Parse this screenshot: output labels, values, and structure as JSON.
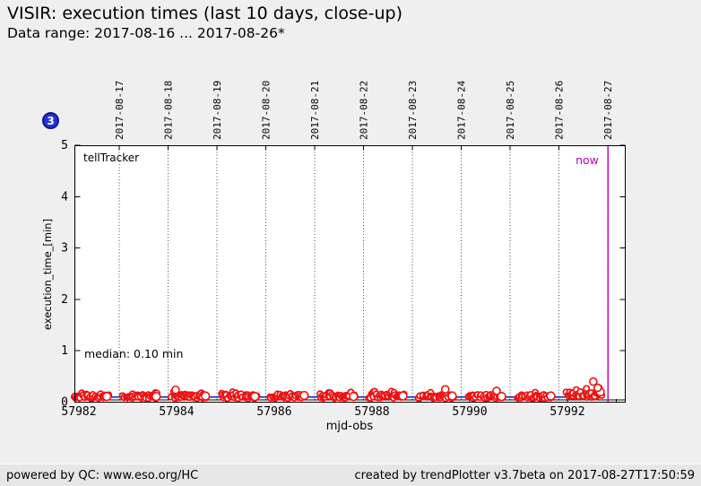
{
  "header": {
    "title": "VISIR: execution times (last 10 days, close-up)",
    "subtitle": "Data range: 2017-08-16 ... 2017-08-26*"
  },
  "badge": {
    "label": "3"
  },
  "footer": {
    "left": "powered by QC: www.eso.org/HC",
    "right": "created by trendPlotter v3.7beta on 2017-08-27T17:50:59"
  },
  "colors": {
    "background": "#efefef",
    "plot_background": "#ffffff",
    "point_red": "#ee1111",
    "median_blue": "#2233cc",
    "now_magenta": "#b800b8",
    "baseline_black": "#000000",
    "badge_blue": "#2533d8"
  },
  "chart_data": {
    "type": "scatter",
    "inside_label": "tellTracker",
    "now_label": "now",
    "median_label": "median: 0.10 min",
    "median_value": 0.1,
    "baseline_value": 0.045,
    "xlabel": "mjd-obs",
    "ylabel": "execution_time_[min]",
    "xlim": [
      57981.9,
      57993.19
    ],
    "ylim": [
      0,
      5
    ],
    "y_ticks": [
      0,
      1,
      2,
      3,
      4,
      5
    ],
    "x_ticks_major": [
      57982,
      57984,
      57986,
      57988,
      57990,
      57992
    ],
    "x_ticks_minor": [
      57983,
      57985,
      57987,
      57989,
      57991,
      57993
    ],
    "top_dates": [
      "2017-08-17",
      "2017-08-18",
      "2017-08-19",
      "2017-08-20",
      "2017-08-21",
      "2017-08-22",
      "2017-08-23",
      "2017-08-24",
      "2017-08-25",
      "2017-08-26",
      "2017-08-27"
    ],
    "top_date_first_mjd": 57982.83,
    "now_mjd": 57992.83,
    "grid": "dotted-vertical-at-dates",
    "legend": false,
    "clusters": [
      {
        "date": "2017-08-16",
        "mjd_start": 57981.9,
        "mjd_end": 57982.59,
        "n": 40,
        "v_min": 0.07,
        "v_max": 0.2,
        "v_close": 0.11
      },
      {
        "date": "2017-08-17",
        "mjd_start": 57982.9,
        "mjd_end": 57983.6,
        "n": 42,
        "v_min": 0.07,
        "v_max": 0.2,
        "v_close": 0.11
      },
      {
        "date": "2017-08-18",
        "mjd_start": 57983.91,
        "mjd_end": 57984.61,
        "n": 42,
        "v_min": 0.07,
        "v_max": 0.21,
        "v_close": 0.12
      },
      {
        "date": "2017-08-19",
        "mjd_start": 57984.92,
        "mjd_end": 57985.62,
        "n": 42,
        "v_min": 0.07,
        "v_max": 0.2,
        "v_close": 0.11
      },
      {
        "date": "2017-08-20",
        "mjd_start": 57985.93,
        "mjd_end": 57986.63,
        "n": 42,
        "v_min": 0.07,
        "v_max": 0.21,
        "v_close": 0.13
      },
      {
        "date": "2017-08-21",
        "mjd_start": 57986.94,
        "mjd_end": 57987.64,
        "n": 40,
        "v_min": 0.07,
        "v_max": 0.2,
        "v_close": 0.11
      },
      {
        "date": "2017-08-22",
        "mjd_start": 57987.95,
        "mjd_end": 57988.65,
        "n": 44,
        "v_min": 0.08,
        "v_max": 0.22,
        "v_close": 0.12
      },
      {
        "date": "2017-08-23",
        "mjd_start": 57988.96,
        "mjd_end": 57989.66,
        "n": 42,
        "v_min": 0.07,
        "v_max": 0.21,
        "v_close": 0.12
      },
      {
        "date": "2017-08-24",
        "mjd_start": 57989.97,
        "mjd_end": 57990.67,
        "n": 42,
        "v_min": 0.07,
        "v_max": 0.2,
        "v_close": 0.11
      },
      {
        "date": "2017-08-25",
        "mjd_start": 57990.98,
        "mjd_end": 57991.68,
        "n": 40,
        "v_min": 0.07,
        "v_max": 0.2,
        "v_close": 0.12
      },
      {
        "date": "2017-08-26",
        "mjd_start": 57991.99,
        "mjd_end": 57992.69,
        "n": 44,
        "v_min": 0.09,
        "v_max": 0.28,
        "v_close": 0.2
      }
    ],
    "outliers": [
      {
        "mjd": 57983.98,
        "value": 0.24
      },
      {
        "mjd": 57989.5,
        "value": 0.25
      },
      {
        "mjd": 57990.55,
        "value": 0.22
      },
      {
        "mjd": 57992.53,
        "value": 0.4
      },
      {
        "mjd": 57992.62,
        "value": 0.28
      }
    ]
  }
}
